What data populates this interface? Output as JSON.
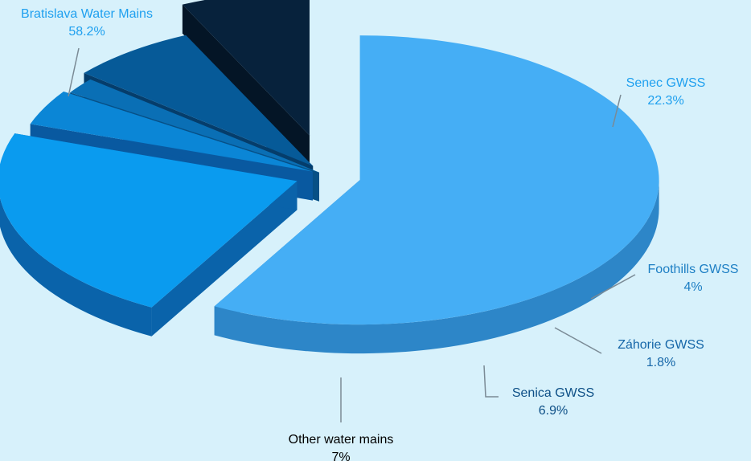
{
  "chart_data": {
    "type": "pie",
    "title": "",
    "categories": [
      "Bratislava Water Mains",
      "Senec GWSS",
      "Foothills GWSS",
      "Záhorie GWSS",
      "Senica GWSS",
      "Other water mains"
    ],
    "values": [
      58.2,
      22.3,
      4,
      1.8,
      6.9,
      7
    ],
    "value_labels": [
      "58.2%",
      "22.3%",
      "4%",
      "1.8%",
      "6.9%",
      "7%"
    ],
    "exploded": true,
    "three_d": true,
    "legend": "none",
    "colors": {
      "background": "#d7f1fb",
      "slices_top": [
        "#45aef5",
        "#0a9bef",
        "#0b86d6",
        "#0a6fb5",
        "#065a98",
        "#07223c"
      ],
      "slices_side": [
        "#2d86c8",
        "#0a63aa",
        "#0959a0",
        "#075086",
        "#053d6b",
        "#041526"
      ],
      "slice_wall": "#2e7fc0",
      "label_colors": [
        "#1fa0ef",
        "#1fa0ef",
        "#1d7fc4",
        "#1566a8",
        "#0d4f86",
        "#000000"
      ],
      "leader_line": "#7a8a95"
    }
  }
}
